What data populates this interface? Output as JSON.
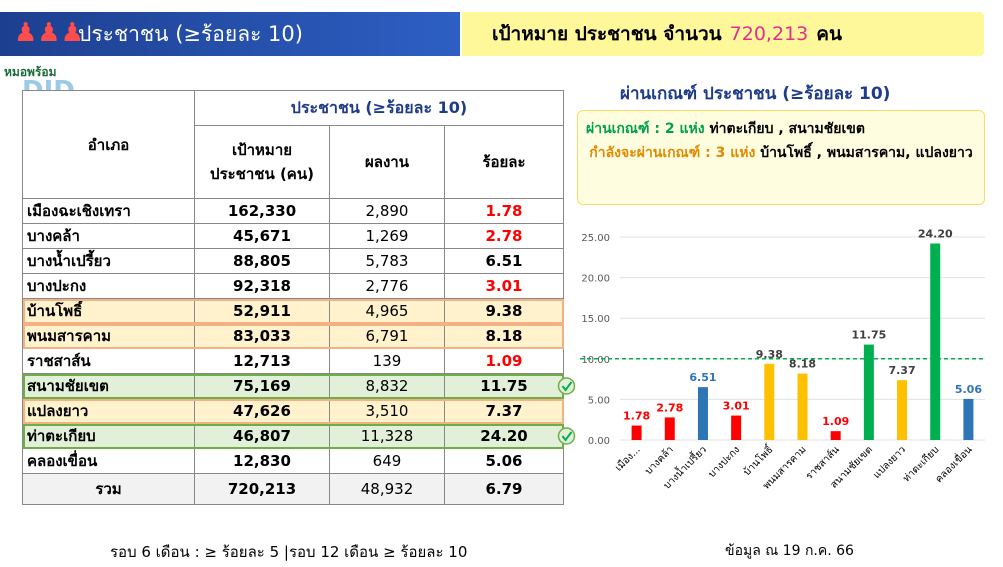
{
  "header": {
    "title": "ประชาชน (≥ร้อยละ 10)",
    "target_prefix": "เป้าหมาย ประชาชน จำนวน",
    "target_value": "720,213",
    "target_unit": "คน"
  },
  "logo": [
    "หมอพร้อม",
    "DID"
  ],
  "table": {
    "group_header": "ประชาชน (≥ร้อยละ 10)",
    "columns": [
      "อำเภอ",
      "เป้าหมาย ประชาชน (คน)",
      "ผลงาน",
      "ร้อยละ"
    ],
    "rows": [
      [
        "เมืองฉะเชิงเทรา",
        "162,330",
        "2,890",
        "1.78"
      ],
      [
        "บางคล้า",
        "45,671",
        "1,269",
        "2.78"
      ],
      [
        "บางน้ำเปรี้ยว",
        "88,805",
        "5,783",
        "6.51"
      ],
      [
        "บางปะกง",
        "92,318",
        "2,776",
        "3.01"
      ],
      [
        "บ้านโพธิ์",
        "52,911",
        "4,965",
        "9.38"
      ],
      [
        "พนมสารคาม",
        "83,033",
        "6,791",
        "8.18"
      ],
      [
        "ราชสาส์น",
        "12,713",
        "139",
        "1.09"
      ],
      [
        "สนามชัยเขต",
        "75,169",
        "8,832",
        "11.75"
      ],
      [
        "แปลงยาว",
        "47,626",
        "3,510",
        "7.37"
      ],
      [
        "ท่าตะเกียบ",
        "46,807",
        "11,328",
        "24.20"
      ],
      [
        "คลองเขื่อน",
        "12,830",
        "649",
        "5.06"
      ]
    ],
    "row_styles": [
      "low",
      "low",
      "mid",
      "low",
      "near",
      "near",
      "low",
      "passed",
      "near",
      "passed",
      "mid"
    ],
    "total": [
      "รวม",
      "720,213",
      "48,932",
      "6.79"
    ]
  },
  "footer_left": "รอบ 6 เดือน : ≥ ร้อยละ 5 |รอบ 12 เดือน ≥ ร้อยละ 10",
  "footer_right": "ข้อมูล ณ 19 ก.ค. 66",
  "criteria": {
    "title": "ผ่านเกณฑ์ ประชาชน (≥ร้อยละ 10)",
    "passed_label": "ผ่านเกณฑ์ :",
    "passed_count": "2 แห่ง",
    "passed": "ท่าตะเกียบ , สนามชัยเขต",
    "near_label": "กำลังจะผ่านเกณฑ์ :",
    "near_count": "3 แห่ง",
    "near": "บ้านโพธิ์ , พนมสารคาม, แปลงยาว"
  },
  "chart_data": {
    "type": "bar",
    "categories": [
      "เมือง...",
      "บางคล้า",
      "บางน้ำเปรี้ยว",
      "บางปะกง",
      "บ้านโพธิ์",
      "พนมสารคาม",
      "ราชสาส์น",
      "สนามชัยเขต",
      "แปลงยาว",
      "ท่าตะเกียบ",
      "คลองเขื่อน"
    ],
    "values": [
      1.78,
      2.78,
      6.51,
      3.01,
      9.38,
      8.18,
      1.09,
      11.75,
      7.37,
      24.2,
      5.06
    ],
    "value_labels": [
      "1.78",
      "2.78",
      "6.51",
      "3.01",
      "9.38",
      "8.18",
      "1.09",
      "11.75",
      "7.37",
      "24.20",
      "5.06"
    ],
    "colors": [
      "#ff0000",
      "#ff0000",
      "#2e75b6",
      "#ff0000",
      "#ffc000",
      "#ffc000",
      "#ff0000",
      "#00b050",
      "#ffc000",
      "#00b050",
      "#2e75b6"
    ],
    "ylim": [
      0,
      25
    ],
    "yticks": [
      {
        "value": 0,
        "label": "0.00"
      },
      {
        "value": 5,
        "label": "5.00"
      },
      {
        "value": 10,
        "label": "10.00"
      },
      {
        "value": 15,
        "label": "15.00"
      },
      {
        "value": 20,
        "label": "20.00"
      },
      {
        "value": 25,
        "label": "25.00"
      }
    ],
    "grid": true,
    "reference_line": {
      "value": 10,
      "color": "#00b050"
    }
  }
}
